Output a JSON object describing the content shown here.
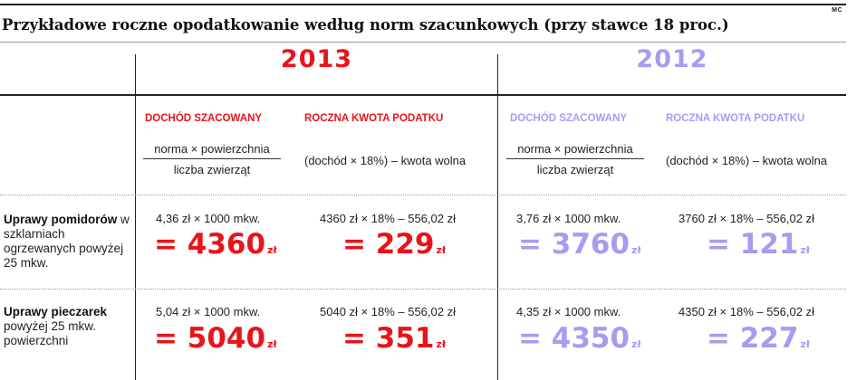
{
  "credit": "MC",
  "title": "Przykładowe roczne opodatkowanie według norm szacunkowych (przy stawce 18 proc.)",
  "years": {
    "y2013": "2013",
    "y2012": "2012"
  },
  "column_headers": {
    "income": "DOCHÓD SZACOWANY",
    "tax": "ROCZNA KWOTA PODATKU"
  },
  "formulas": {
    "income_numerator": "norma × powierzchnia",
    "income_denominator": "liczba zwierząt",
    "tax": "(dochód × 18%) – kwota wolna"
  },
  "rows": [
    {
      "label_bold": "Uprawy pomidorów",
      "label_rest": "w szklarniach ogrzewanych powyżej 25 mkw.",
      "y2013": {
        "income_calc": "4,36 zł × 1000 mkw.",
        "income_result": "= 4360",
        "tax_calc": "4360 zł × 18% – 556,02 zł",
        "tax_result": "= 229"
      },
      "y2012": {
        "income_calc": "3,76 zł × 1000 mkw.",
        "income_result": "= 3760",
        "tax_calc": "3760 zł × 18% – 556,02 zł",
        "tax_result": "= 121"
      }
    },
    {
      "label_bold": "Uprawy pieczarek",
      "label_rest": "powyżej 25 mkw. powierzchni",
      "y2013": {
        "income_calc": "5,04 zł × 1000 mkw.",
        "income_result": "= 5040",
        "tax_calc": "5040 zł × 18% – 556,02 zł",
        "tax_result": "= 351"
      },
      "y2012": {
        "income_calc": "4,35 zł × 1000 mkw.",
        "income_result": "= 4350",
        "tax_calc": "4350 zł × 18% – 556,02 zł",
        "tax_result": "= 227"
      }
    }
  ],
  "unit": "zł",
  "colors": {
    "red_2013": "#e8141b",
    "lavender_2012": "#a99bf0"
  }
}
